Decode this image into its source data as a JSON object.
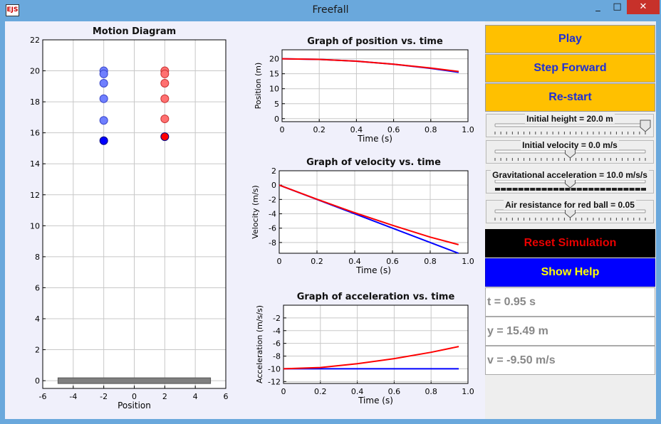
{
  "window": {
    "title": "Freefall",
    "icon_text": "EJS",
    "minimize_symbol": "_",
    "maximize_symbol": "□",
    "close_symbol": "✕"
  },
  "controls": {
    "play_label": "Play",
    "step_label": "Step Forward",
    "restart_label": "Re-start",
    "reset_label": "Reset Simulation",
    "help_label": "Show Help"
  },
  "sliders": [
    {
      "label": "Initial height = 20.0 m",
      "fraction": 1.0,
      "dark_track": false
    },
    {
      "label": "Initial velocity = 0.0 m/s",
      "fraction": 0.5,
      "dark_track": false
    },
    {
      "label": "Gravitational acceleration = 10.0 m/s/s",
      "fraction": 0.5,
      "dark_track": true
    },
    {
      "label": "Air resistance for red ball = 0.05",
      "fraction": 0.5,
      "dark_track": false
    }
  ],
  "readouts": {
    "time": "t = 0.95 s",
    "height": "y = 15.49 m",
    "velocity": "v = -9.50 m/s"
  },
  "colors": {
    "button_yellow": "#ffc000",
    "button_text_blue": "#1e2fd6",
    "reset_bg": "#000000",
    "reset_text": "#e80000",
    "help_bg": "#0000ff",
    "help_text": "#ffff00",
    "blue_ball": "#0000ff",
    "red_ball": "#ff0000"
  },
  "chart_data": [
    {
      "type": "scatter",
      "title": "Motion Diagram",
      "xlabel": "Position",
      "ylabel": "",
      "xlim": [
        -6,
        6
      ],
      "ylim": [
        -0.5,
        22
      ],
      "xticks": [
        -6,
        -4,
        -2,
        0,
        2,
        4,
        6
      ],
      "yticks": [
        0,
        2,
        4,
        6,
        8,
        10,
        12,
        14,
        16,
        18,
        20,
        22
      ],
      "grid": true,
      "ground": {
        "x_from": -5,
        "x_to": 5
      },
      "series": [
        {
          "color": "blue",
          "x": -2,
          "y": [
            20.0,
            19.8,
            19.2,
            18.2,
            16.8,
            15.49
          ]
        },
        {
          "color": "red",
          "x": 2,
          "y": [
            20.0,
            19.8,
            19.2,
            18.2,
            16.9,
            15.75
          ]
        }
      ]
    },
    {
      "type": "line",
      "title": "Graph of position vs. time",
      "xlabel": "Time (s)",
      "ylabel": "Position (m)",
      "xlim": [
        0,
        1.0
      ],
      "ylim": [
        -1,
        23
      ],
      "xticks": [
        "0",
        "0.2",
        "0.4",
        "0.6",
        "0.8",
        "1.0"
      ],
      "yticks": [
        "0",
        "5",
        "10",
        "15",
        "20"
      ],
      "grid": true,
      "series": [
        {
          "color": "blue",
          "x": [
            0,
            0.2,
            0.4,
            0.6,
            0.8,
            0.95
          ],
          "y": [
            20.0,
            19.8,
            19.2,
            18.2,
            16.8,
            15.49
          ]
        },
        {
          "color": "red",
          "x": [
            0,
            0.2,
            0.4,
            0.6,
            0.8,
            0.95
          ],
          "y": [
            20.0,
            19.8,
            19.2,
            18.2,
            16.9,
            15.75
          ]
        }
      ]
    },
    {
      "type": "line",
      "title": "Graph of velocity vs. time",
      "xlabel": "Time (s)",
      "ylabel": "Velocity (m/s)",
      "xlim": [
        0,
        1.0
      ],
      "ylim": [
        -9.5,
        2
      ],
      "xticks": [
        "0",
        "0.2",
        "0.4",
        "0.6",
        "0.8",
        "1.0"
      ],
      "yticks": [
        "2",
        "0",
        "-2",
        "-4",
        "-6",
        "-8"
      ],
      "grid": true,
      "series": [
        {
          "color": "blue",
          "x": [
            0,
            0.95
          ],
          "y": [
            0,
            -9.5
          ]
        },
        {
          "color": "red",
          "x": [
            0,
            0.2,
            0.4,
            0.6,
            0.8,
            0.95
          ],
          "y": [
            0,
            -1.97,
            -3.85,
            -5.6,
            -7.25,
            -8.3
          ]
        }
      ]
    },
    {
      "type": "line",
      "title": "Graph of acceleration vs. time",
      "xlabel": "Time (s)",
      "ylabel": "Acceleration (m/s/s)",
      "xlim": [
        0,
        1.0
      ],
      "ylim": [
        -12.3,
        0
      ],
      "xticks": [
        "0",
        "0.2",
        "0.4",
        "0.6",
        "0.8",
        "1.0"
      ],
      "yticks": [
        "-2",
        "-4",
        "-6",
        "-8",
        "-10",
        "-12"
      ],
      "grid": true,
      "series": [
        {
          "color": "blue",
          "x": [
            0,
            0.95
          ],
          "y": [
            -10,
            -10
          ]
        },
        {
          "color": "red",
          "x": [
            0,
            0.2,
            0.4,
            0.6,
            0.8,
            0.95
          ],
          "y": [
            -10,
            -9.8,
            -9.2,
            -8.4,
            -7.4,
            -6.5
          ]
        }
      ]
    }
  ]
}
